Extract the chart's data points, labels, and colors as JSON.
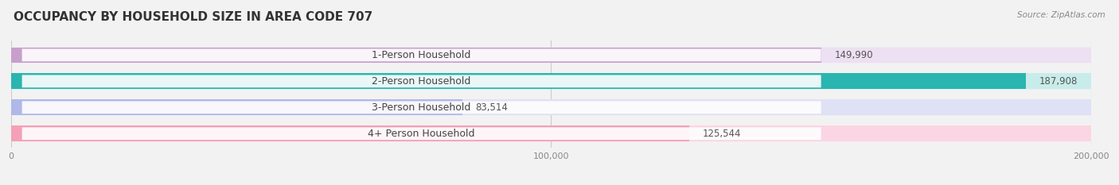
{
  "title": "OCCUPANCY BY HOUSEHOLD SIZE IN AREA CODE 707",
  "source": "Source: ZipAtlas.com",
  "categories": [
    "1-Person Household",
    "2-Person Household",
    "3-Person Household",
    "4+ Person Household"
  ],
  "values": [
    149990,
    187908,
    83514,
    125544
  ],
  "bar_colors": [
    "#c89fcc",
    "#2ab5b0",
    "#b0b8e8",
    "#f4a0b8"
  ],
  "bar_bg_colors": [
    "#ede0f2",
    "#c8ecea",
    "#dfe1f5",
    "#fbd5e3"
  ],
  "xlim": [
    0,
    200000
  ],
  "xtick_labels": [
    "0",
    "100,000",
    "200,000"
  ],
  "label_fontsize": 9,
  "title_fontsize": 11,
  "value_fontsize": 8.5,
  "background_color": "#f2f2f2"
}
